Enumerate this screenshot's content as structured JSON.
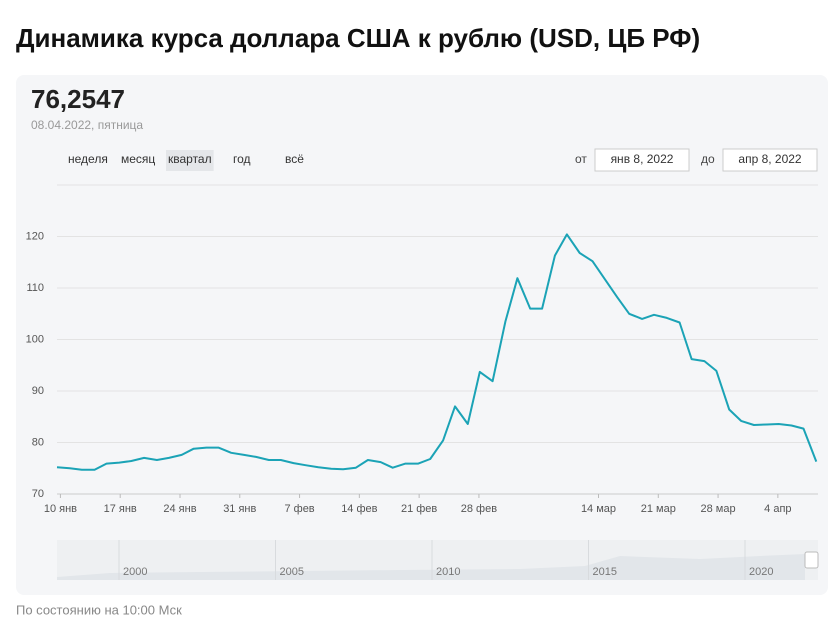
{
  "header": {
    "title": "Динамика курса доллара США к рублю (USD, ЦБ РФ)"
  },
  "current": {
    "value": "76,2547",
    "date": "08.04.2022, пятница"
  },
  "controls": {
    "periods": [
      "неделя",
      "месяц",
      "квартал",
      "год",
      "всё"
    ],
    "selected": 2,
    "from_label": "от",
    "from": "янв 8, 2022",
    "to_label": "до",
    "to": "апр 8, 2022"
  },
  "chart_data": {
    "type": "line",
    "color": "#1ba3b6",
    "grid": true,
    "x": [
      9.6,
      11.1,
      12.5,
      14.0,
      15.4,
      16.9,
      18.3,
      19.8,
      21.3,
      22.7,
      24.2,
      25.6,
      27.1,
      28.5,
      30.0,
      31.5,
      32.9,
      34.4,
      35.8,
      37.3,
      38.7,
      40.2,
      41.7,
      43.1,
      44.6,
      46.0,
      47.5,
      48.9,
      50.4,
      51.9,
      53.3,
      54.8,
      56.2,
      57.7,
      59.1,
      60.6,
      62.1,
      63.5,
      65.0,
      66.4,
      67.9,
      69.3,
      70.8,
      72.3,
      73.7,
      75.2,
      76.6,
      78.1,
      79.5,
      81.0,
      82.5,
      83.9,
      85.4,
      86.8,
      88.3,
      89.7,
      91.2,
      92.7,
      94.1,
      95.6,
      97.0,
      98.5
    ],
    "values": [
      75.2,
      75.0,
      74.7,
      74.7,
      75.9,
      76.1,
      76.4,
      77.0,
      76.6,
      77.0,
      77.6,
      78.8,
      79.0,
      79.0,
      78.0,
      77.6,
      77.2,
      76.6,
      76.6,
      76.0,
      75.6,
      75.2,
      74.9,
      74.8,
      75.1,
      76.6,
      76.2,
      75.1,
      75.9,
      75.9,
      76.8,
      80.4,
      87.0,
      83.6,
      93.7,
      91.9,
      103.5,
      111.9,
      106.0,
      106.0,
      116.3,
      120.4,
      116.8,
      115.2,
      111.8,
      108.2,
      105.0,
      104.0,
      104.8,
      104.2,
      103.3,
      96.2,
      95.8,
      93.9,
      86.4,
      84.2,
      83.4,
      83.5,
      83.6,
      83.3,
      82.7,
      76.3
    ],
    "xlim": [
      9.6,
      98.7
    ],
    "ylim": [
      70,
      130
    ],
    "yticks": [
      70,
      80,
      90,
      100,
      110,
      120
    ],
    "xticks": [
      {
        "value": 10,
        "label": "10 янв"
      },
      {
        "value": 17,
        "label": "17 янв"
      },
      {
        "value": 24,
        "label": "24 янв"
      },
      {
        "value": 31,
        "label": "31 янв"
      },
      {
        "value": 38,
        "label": "7 фев"
      },
      {
        "value": 45,
        "label": "14 фев"
      },
      {
        "value": 52,
        "label": "21 фев"
      },
      {
        "value": 59,
        "label": "28 фев"
      },
      {
        "value": 73,
        "label": "14 мар"
      },
      {
        "value": 80,
        "label": "21 мар"
      },
      {
        "value": 87,
        "label": "28 мар"
      },
      {
        "value": 94,
        "label": "4 апр"
      }
    ]
  },
  "navigator": {
    "labels": [
      "2000",
      "2005",
      "2010",
      "2015",
      "2020"
    ]
  },
  "footer": {
    "note": "По состоянию на 10:00 Мск"
  }
}
